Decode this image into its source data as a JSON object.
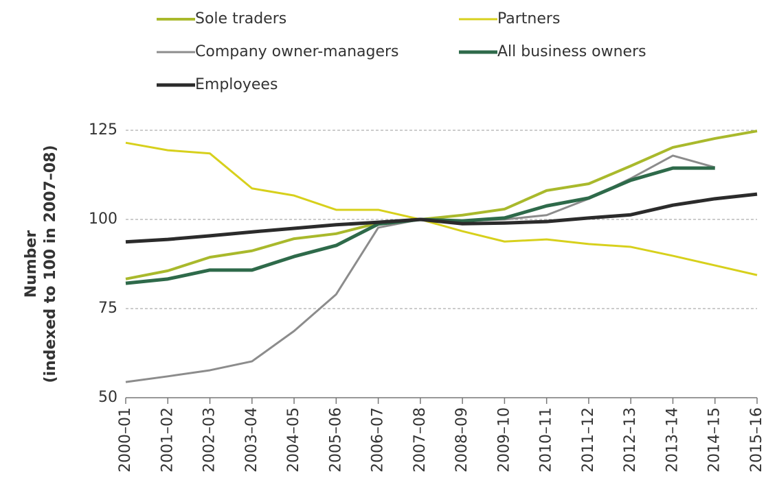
{
  "chart_data": {
    "type": "line",
    "ylabel": [
      "Number",
      "(indexed to 100 in 2007–08)"
    ],
    "categories": [
      "2000–01",
      "2001–02",
      "2002–03",
      "2003–04",
      "2004–05",
      "2005–06",
      "2006–07",
      "2007–08",
      "2008–09",
      "2009–10",
      "2010–11",
      "2011–12",
      "2012–13",
      "2013–14",
      "2014–15",
      "2015–16"
    ],
    "series": [
      {
        "name": "Sole traders",
        "color": "#a9b92c",
        "width": 4,
        "values": [
          83.3,
          85.6,
          89.4,
          91.2,
          94.6,
          96.0,
          99.0,
          100,
          101.2,
          102.9,
          108.1,
          110.0,
          115.0,
          120.2,
          122.7,
          124.8
        ]
      },
      {
        "name": "Partners",
        "color": "#d7d01c",
        "width": 3,
        "values": [
          121.5,
          119.4,
          118.5,
          108.7,
          106.7,
          102.7,
          102.7,
          100,
          96.7,
          93.8,
          94.4,
          93.1,
          92.3,
          89.8,
          87.1,
          84.4
        ]
      },
      {
        "name": "Company owner-managers",
        "color": "#8c8c8c",
        "width": 3,
        "values": [
          54.4,
          56.0,
          57.7,
          60.2,
          68.7,
          79.0,
          97.7,
          100,
          99.6,
          100,
          101.2,
          105.8,
          111.5,
          117.9,
          114.6,
          null
        ]
      },
      {
        "name": "All business owners",
        "color": "#2e6a4a",
        "width": 5,
        "values": [
          82.1,
          83.3,
          85.8,
          85.8,
          89.6,
          92.7,
          98.7,
          100,
          99.6,
          100.4,
          103.8,
          106.0,
          111.0,
          114.4,
          114.4,
          null
        ]
      },
      {
        "name": "Employees",
        "color": "#2b2b2b",
        "width": 5,
        "values": [
          93.7,
          94.4,
          95.4,
          96.5,
          97.5,
          98.5,
          99.2,
          100,
          98.8,
          99.0,
          99.4,
          100.4,
          101.3,
          104.0,
          105.8,
          107.1
        ]
      }
    ],
    "ylim": [
      50,
      125
    ],
    "yticks": [
      50,
      75,
      100,
      125
    ],
    "grid": true
  }
}
